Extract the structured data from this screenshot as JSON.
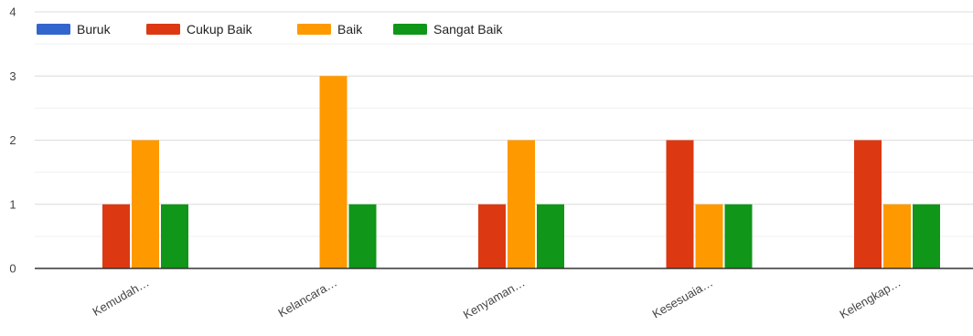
{
  "chart_data": {
    "type": "bar",
    "categories": [
      "Kemudah…",
      "Kelancara…",
      "Kenyaman…",
      "Kesesuaia…",
      "Kelengkap…"
    ],
    "series": [
      {
        "name": "Buruk",
        "color": "#3366cc",
        "values": [
          0,
          0,
          0,
          0,
          0
        ]
      },
      {
        "name": "Cukup Baik",
        "color": "#dc3912",
        "values": [
          1,
          0,
          1,
          2,
          2
        ]
      },
      {
        "name": "Baik",
        "color": "#ff9900",
        "values": [
          2,
          3,
          2,
          1,
          1
        ]
      },
      {
        "name": "Sangat Baik",
        "color": "#109618",
        "values": [
          1,
          1,
          1,
          1,
          1
        ]
      }
    ],
    "ylim": [
      0,
      4
    ],
    "yticks": [
      0,
      1,
      2,
      3,
      4
    ],
    "ytick_labels": [
      "0",
      "1",
      "2",
      "3",
      "4"
    ],
    "minor_grid_step": 0.5,
    "grid": true,
    "legend_position": "top-left",
    "title": "",
    "xlabel": "",
    "ylabel": ""
  }
}
